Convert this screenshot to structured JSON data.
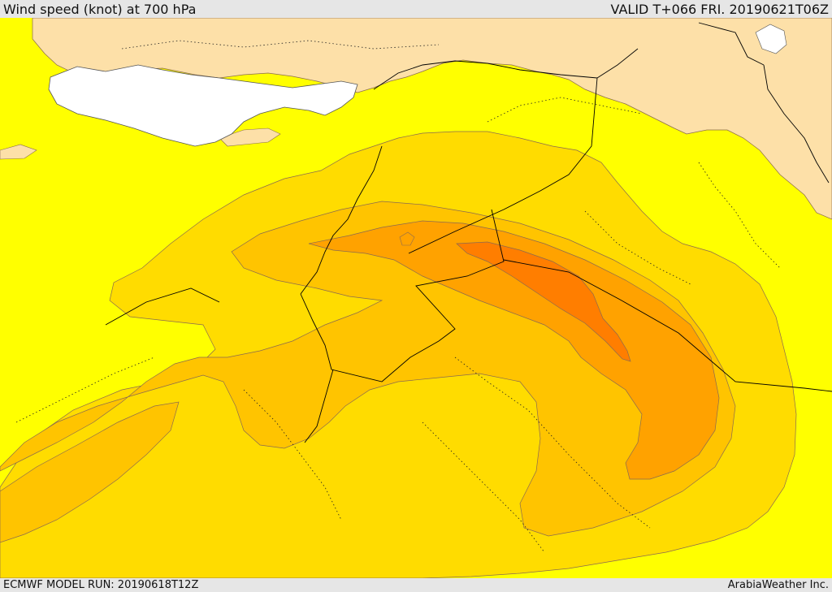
{
  "header": {
    "title": "Wind speed (knot) at 700 hPa",
    "valid": "VALID T+066 FRI. 20190621T06Z"
  },
  "footer": {
    "model_run": "ECMWF MODEL RUN: 20190618T12Z",
    "credit": "ArabiaWeather Inc."
  },
  "colors": {
    "land_tan": "#fde0a8",
    "sea_white": "#ffffff",
    "band_yellow": "#ffff00",
    "band_gold": "#ffdc00",
    "band_amber": "#ffc400",
    "band_orange": "#ffa200",
    "band_deep_orange": "#ff7e00",
    "contour_line": "#8a6a50",
    "border_line": "#000000"
  }
}
